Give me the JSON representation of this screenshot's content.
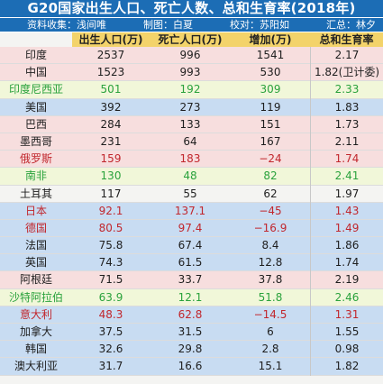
{
  "title": "G20国家出生人口、死亡人数、总和生育率(2018年)",
  "credits": [
    "资料收集：浅间唯",
    "制图：白夏",
    "校对：苏阳如",
    "汇总：林夕"
  ],
  "headers": [
    "",
    "出生人口(万)",
    "死亡人口(万)",
    "增加(万)",
    "总和生育率"
  ],
  "colors": {
    "title_bg": "#1c6db5",
    "header_bg": "#f3d36a",
    "pink_row": "#f7dede",
    "blue_row": "#c8dcf2",
    "green_row": "#f1f7d9",
    "white_row": "#f4f4f2",
    "red_text": "#c1272d",
    "green_text": "#2aa23c"
  },
  "rows": [
    {
      "country": "印度",
      "birth": "2537",
      "death": "996",
      "increase": "1541",
      "tfr": "2.17",
      "bg": "pink",
      "text": "normal"
    },
    {
      "country": "中国",
      "birth": "1523",
      "death": "993",
      "increase": "530",
      "tfr": "1.82(卫计委)",
      "bg": "pink",
      "text": "normal"
    },
    {
      "country": "印度尼西亚",
      "birth": "501",
      "death": "192",
      "increase": "309",
      "tfr": "2.33",
      "bg": "green",
      "text": "green"
    },
    {
      "country": "美国",
      "birth": "392",
      "death": "273",
      "increase": "119",
      "tfr": "1.83",
      "bg": "blue",
      "text": "normal"
    },
    {
      "country": "巴西",
      "birth": "284",
      "death": "133",
      "increase": "151",
      "tfr": "1.73",
      "bg": "pink",
      "text": "normal"
    },
    {
      "country": "墨西哥",
      "birth": "231",
      "death": "64",
      "increase": "167",
      "tfr": "2.11",
      "bg": "pink",
      "text": "normal"
    },
    {
      "country": "俄罗斯",
      "birth": "159",
      "death": "183",
      "increase": "−24",
      "tfr": "1.74",
      "bg": "pink",
      "text": "red"
    },
    {
      "country": "南非",
      "birth": "130",
      "death": "48",
      "increase": "82",
      "tfr": "2.41",
      "bg": "green",
      "text": "green"
    },
    {
      "country": "土耳其",
      "birth": "117",
      "death": "55",
      "increase": "62",
      "tfr": "1.97",
      "bg": "white",
      "text": "normal"
    },
    {
      "country": "日本",
      "birth": "92.1",
      "death": "137.1",
      "increase": "−45",
      "tfr": "1.43",
      "bg": "blue",
      "text": "red"
    },
    {
      "country": "德国",
      "birth": "80.5",
      "death": "97.4",
      "increase": "−16.9",
      "tfr": "1.49",
      "bg": "blue",
      "text": "red"
    },
    {
      "country": "法国",
      "birth": "75.8",
      "death": "67.4",
      "increase": "8.4",
      "tfr": "1.86",
      "bg": "blue",
      "text": "normal"
    },
    {
      "country": "英国",
      "birth": "74.3",
      "death": "61.5",
      "increase": "12.8",
      "tfr": "1.74",
      "bg": "blue",
      "text": "normal"
    },
    {
      "country": "阿根廷",
      "birth": "71.5",
      "death": "33.7",
      "increase": "37.8",
      "tfr": "2.19",
      "bg": "pink",
      "text": "normal"
    },
    {
      "country": "沙特阿拉伯",
      "birth": "63.9",
      "death": "12.1",
      "increase": "51.8",
      "tfr": "2.46",
      "bg": "green",
      "text": "green"
    },
    {
      "country": "意大利",
      "birth": "48.3",
      "death": "62.8",
      "increase": "−14.5",
      "tfr": "1.31",
      "bg": "blue",
      "text": "red"
    },
    {
      "country": "加拿大",
      "birth": "37.5",
      "death": "31.5",
      "increase": "6",
      "tfr": "1.55",
      "bg": "blue",
      "text": "normal"
    },
    {
      "country": "韩国",
      "birth": "32.6",
      "death": "29.8",
      "increase": "2.8",
      "tfr": "0.98",
      "bg": "blue",
      "text": "normal"
    },
    {
      "country": "澳大利亚",
      "birth": "31.7",
      "death": "16.6",
      "increase": "15.1",
      "tfr": "1.82",
      "bg": "blue",
      "text": "normal"
    }
  ]
}
